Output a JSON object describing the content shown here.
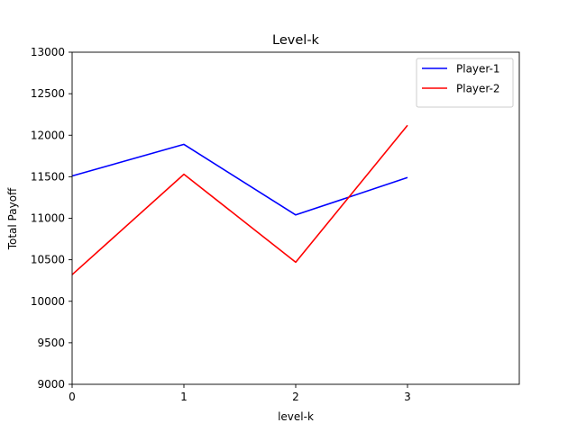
{
  "chart_data": {
    "type": "line",
    "title": "Level-k",
    "xlabel": "level-k",
    "ylabel": "Total Payoff",
    "x": [
      0,
      1,
      2,
      3
    ],
    "xlim": [
      0,
      4
    ],
    "ylim": [
      9000,
      13000
    ],
    "xticks": [
      "0",
      "1",
      "2",
      "3"
    ],
    "yticks": [
      "9000",
      "9500",
      "10000",
      "10500",
      "11000",
      "11500",
      "12000",
      "12500",
      "13000"
    ],
    "grid": false,
    "legend_position": "top-right",
    "series": [
      {
        "name": "Player-1",
        "color": "#0000ff",
        "values": [
          11510,
          11890,
          11040,
          11490
        ]
      },
      {
        "name": "Player-2",
        "color": "#ff0000",
        "values": [
          10320,
          11530,
          10470,
          12120
        ]
      }
    ]
  }
}
